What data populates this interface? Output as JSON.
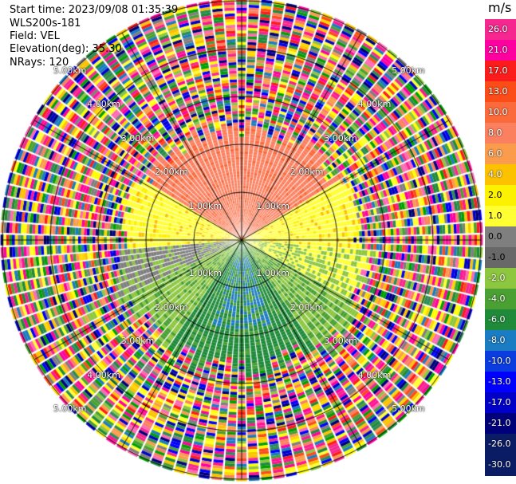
{
  "info": {
    "start_time": "Start time: 2023/09/08 01:35:39",
    "device": "WLS200s-181",
    "field": "Field: VEL",
    "elevation": "Elevation(deg): 35.30",
    "nrays": "NRays: 120"
  },
  "chart_data": {
    "type": "heatmap",
    "projection": "polar (PPI)",
    "nrays": 120,
    "unit": "m/s",
    "range_rings_km": [
      1.0,
      2.0,
      3.0,
      4.0,
      5.0
    ],
    "ring_labels": [
      "1.00km",
      "2.00km",
      "3.00km",
      "4.00km",
      "5.00km"
    ],
    "spoke_angles_deg": [
      0,
      30,
      60,
      90,
      120,
      150,
      180,
      210,
      240,
      270,
      300,
      330
    ],
    "colorbar": {
      "title": "m/s",
      "ticks": [
        "26.0",
        "21.0",
        "17.0",
        "13.0",
        "10.0",
        "8.0",
        "6.0",
        "4.0",
        "2.0",
        "1.0",
        "0.0",
        "-1.0",
        "-2.0",
        "-4.0",
        "-6.0",
        "-8.0",
        "-10.0",
        "-13.0",
        "-17.0",
        "-21.0",
        "-26.0",
        "-30.0"
      ],
      "colors": [
        "#f6288f",
        "#ff00a0",
        "#fc1c1c",
        "#fc4c18",
        "#fb6a3a",
        "#fb8060",
        "#fb9c4c",
        "#fcc200",
        "#fcf200",
        "#ffff33",
        "#7f7f7f",
        "#686868",
        "#8dc63f",
        "#4aa033",
        "#1f8b3a",
        "#1a7cc3",
        "#0a3ce0",
        "#0000ff",
        "#0000c8",
        "#00007a",
        "#0a1c64",
        "#0a1c64"
      ]
    },
    "inner_pattern": {
      "description_values": "Near-range (<~3km) coherent radial-velocity field",
      "north_sector": "5.0 to 8.0 m/s (salmon/orange)",
      "east_west_band": "1.0 to 2.0 m/s (yellow)",
      "west_sector": "0.0 to -1.0 m/s (grey)",
      "south_west_band": "-2.0 to -4.0 m/s (light green)",
      "south_sector": "-6.0 m/s (green) with -10.0 m/s (blue) core"
    }
  }
}
